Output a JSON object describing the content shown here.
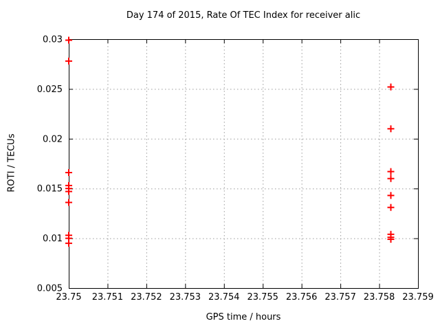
{
  "colors": {
    "background": "#ffffff",
    "marker": "#ff0000",
    "grid": "#9a9a9a",
    "axis": "#000000",
    "text": "#000000"
  },
  "chart_data": {
    "type": "scatter",
    "title": "Day 174 of 2015, Rate Of TEC Index for receiver alic",
    "xlabel": "GPS time / hours",
    "ylabel": "ROTI / TECUs",
    "xlim": [
      23.75,
      23.759
    ],
    "ylim": [
      0.005,
      0.03
    ],
    "x_ticks": [
      23.75,
      23.751,
      23.752,
      23.753,
      23.754,
      23.755,
      23.756,
      23.757,
      23.758,
      23.759
    ],
    "x_tick_labels": [
      "23.75",
      "23.751",
      "23.752",
      "23.753",
      "23.754",
      "23.755",
      "23.756",
      "23.757",
      "23.758",
      "23.759"
    ],
    "y_ticks": [
      0.005,
      0.01,
      0.015,
      0.02,
      0.025,
      0.03
    ],
    "y_tick_labels": [
      "0.005",
      "0.01",
      "0.015",
      "0.02",
      "0.025",
      "0.03"
    ],
    "grid": true,
    "legend": "none",
    "marker": "plus",
    "series": [
      {
        "name": "ROTI",
        "points": [
          {
            "x": 23.75,
            "y": 0.0299
          },
          {
            "x": 23.75,
            "y": 0.0278
          },
          {
            "x": 23.75,
            "y": 0.0166
          },
          {
            "x": 23.75,
            "y": 0.0153
          },
          {
            "x": 23.75,
            "y": 0.015
          },
          {
            "x": 23.75,
            "y": 0.0147
          },
          {
            "x": 23.75,
            "y": 0.0136
          },
          {
            "x": 23.75,
            "y": 0.0103
          },
          {
            "x": 23.75,
            "y": 0.01
          },
          {
            "x": 23.75,
            "y": 0.0095
          },
          {
            "x": 23.7583,
            "y": 0.0252
          },
          {
            "x": 23.7583,
            "y": 0.021
          },
          {
            "x": 23.7583,
            "y": 0.0167
          },
          {
            "x": 23.7583,
            "y": 0.016
          },
          {
            "x": 23.7583,
            "y": 0.0143
          },
          {
            "x": 23.7583,
            "y": 0.0131
          },
          {
            "x": 23.7583,
            "y": 0.0104
          },
          {
            "x": 23.7583,
            "y": 0.0101
          },
          {
            "x": 23.7583,
            "y": 0.0099
          }
        ]
      }
    ]
  }
}
